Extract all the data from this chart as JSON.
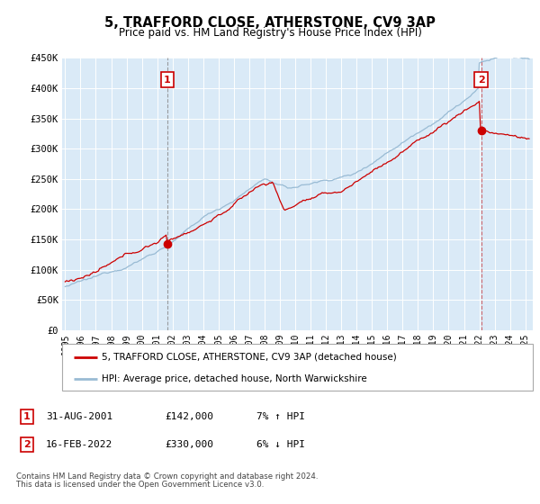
{
  "title": "5, TRAFFORD CLOSE, ATHERSTONE, CV9 3AP",
  "subtitle": "Price paid vs. HM Land Registry's House Price Index (HPI)",
  "bg_color": "#daeaf7",
  "red_color": "#cc0000",
  "blue_color": "#99bbd4",
  "ylim": [
    0,
    450000
  ],
  "xlim_start": 1994.8,
  "xlim_end": 2025.5,
  "yticks": [
    0,
    50000,
    100000,
    150000,
    200000,
    250000,
    300000,
    350000,
    400000,
    450000
  ],
  "ytick_labels": [
    "£0",
    "£50K",
    "£100K",
    "£150K",
    "£200K",
    "£250K",
    "£300K",
    "£350K",
    "£400K",
    "£450K"
  ],
  "xticks": [
    1995,
    1996,
    1997,
    1998,
    1999,
    2000,
    2001,
    2002,
    2003,
    2004,
    2005,
    2006,
    2007,
    2008,
    2009,
    2010,
    2011,
    2012,
    2013,
    2014,
    2015,
    2016,
    2017,
    2018,
    2019,
    2020,
    2021,
    2022,
    2023,
    2024,
    2025
  ],
  "marker1_x": 2001.667,
  "marker1_y": 142000,
  "marker1_label": "1",
  "marker1_date": "31-AUG-2001",
  "marker1_price": "£142,000",
  "marker1_hpi": "7% ↑ HPI",
  "marker2_x": 2022.125,
  "marker2_y": 330000,
  "marker2_label": "2",
  "marker2_date": "16-FEB-2022",
  "marker2_price": "£330,000",
  "marker2_hpi": "6% ↓ HPI",
  "legend_line1": "5, TRAFFORD CLOSE, ATHERSTONE, CV9 3AP (detached house)",
  "legend_line2": "HPI: Average price, detached house, North Warwickshire",
  "footer1": "Contains HM Land Registry data © Crown copyright and database right 2024.",
  "footer2": "This data is licensed under the Open Government Licence v3.0."
}
